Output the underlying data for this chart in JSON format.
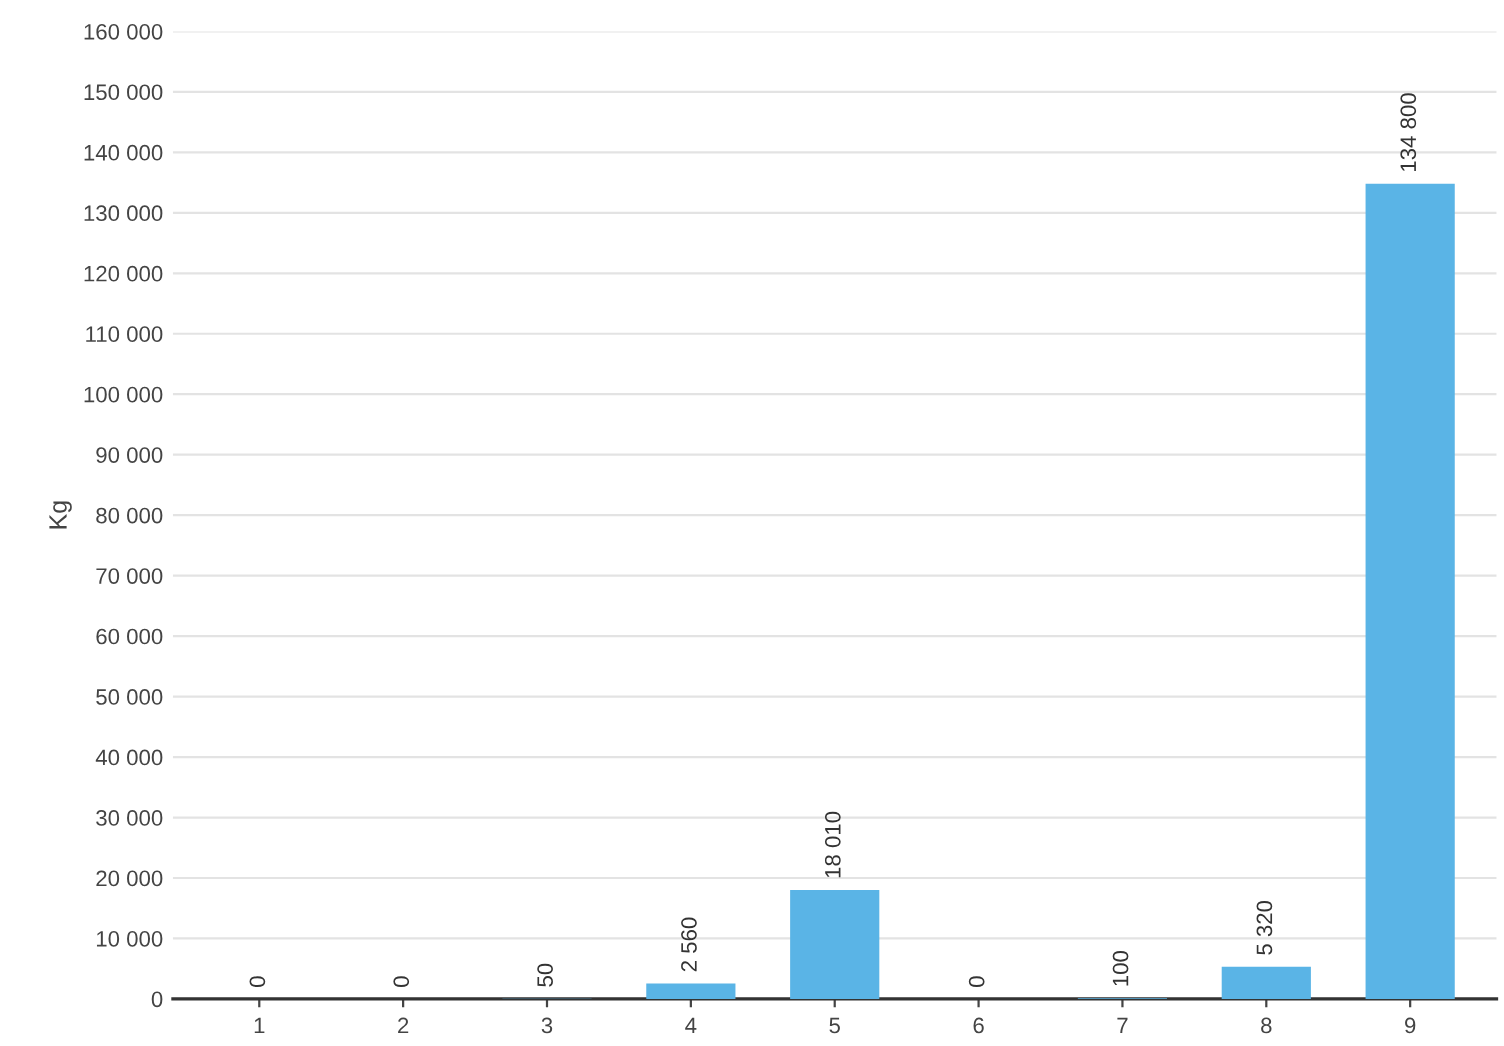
{
  "chart_data": {
    "type": "bar",
    "ylabel": "Kg",
    "categories": [
      "1",
      "2",
      "3",
      "4",
      "5",
      "6",
      "7",
      "8",
      "9"
    ],
    "values": [
      0,
      0,
      50,
      2560,
      18010,
      0,
      100,
      5320,
      134800
    ],
    "value_labels": [
      "0",
      "0",
      "50",
      "2 560",
      "18 010",
      "0",
      "100",
      "5 320",
      "134 800"
    ],
    "color": "#5ab4e6",
    "ylim": [
      0,
      160000
    ],
    "yticks": [
      {
        "value": 0,
        "label": "0"
      },
      {
        "value": 10000,
        "label": "10 000"
      },
      {
        "value": 20000,
        "label": "20 000"
      },
      {
        "value": 30000,
        "label": "30 000"
      },
      {
        "value": 40000,
        "label": "40 000"
      },
      {
        "value": 50000,
        "label": "50 000"
      },
      {
        "value": 60000,
        "label": "60 000"
      },
      {
        "value": 70000,
        "label": "70 000"
      },
      {
        "value": 80000,
        "label": "80 000"
      },
      {
        "value": 90000,
        "label": "90 000"
      },
      {
        "value": 100000,
        "label": "100 000"
      },
      {
        "value": 110000,
        "label": "110 000"
      },
      {
        "value": 120000,
        "label": "120 000"
      },
      {
        "value": 130000,
        "label": "130 000"
      },
      {
        "value": 140000,
        "label": "140 000"
      },
      {
        "value": 150000,
        "label": "150 000"
      },
      {
        "value": 160000,
        "label": "160 000"
      }
    ],
    "grid": "y"
  }
}
